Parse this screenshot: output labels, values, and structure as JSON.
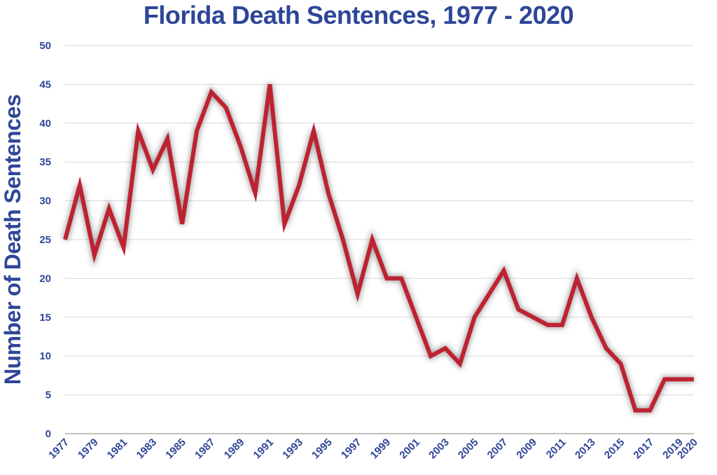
{
  "colors": {
    "text": "#2E4698",
    "line": "#BE2231",
    "grid": "#D8D8D8",
    "axis": "#9A9A9A",
    "shadow": "#5A5A5A"
  },
  "chart_data": {
    "type": "line",
    "title": "Florida Death Sentences, 1977 - 2020",
    "xlabel": "",
    "ylabel": "Number of Death Sentences",
    "ylim": [
      0,
      50
    ],
    "yticks": [
      0,
      5,
      10,
      15,
      20,
      25,
      30,
      35,
      40,
      45,
      50
    ],
    "xlim": [
      1977,
      2020
    ],
    "xtick_labels": [
      "1977",
      "1979",
      "1981",
      "1983",
      "1985",
      "1987",
      "1989",
      "1991",
      "1993",
      "1995",
      "1997",
      "1999",
      "2001",
      "2003",
      "2005",
      "2007",
      "2009",
      "2011",
      "2013",
      "2015",
      "2017",
      "2019",
      "2020"
    ],
    "grid": true,
    "legend": "none",
    "series": [
      {
        "x": [
          1977,
          1978,
          1979,
          1980,
          1981,
          1982,
          1983,
          1984,
          1985,
          1986,
          1987,
          1988,
          1989,
          1990,
          1991,
          1992,
          1993,
          1994,
          1995,
          1996,
          1997,
          1998,
          1999,
          2000,
          2001,
          2002,
          2003,
          2004,
          2005,
          2006,
          2007,
          2008,
          2009,
          2010,
          2011,
          2012,
          2013,
          2014,
          2015,
          2016,
          2017,
          2018,
          2019,
          2020
        ],
        "y": [
          25,
          32,
          23,
          29,
          24,
          39,
          34,
          38,
          27,
          39,
          44,
          42,
          37,
          31,
          45,
          27,
          32,
          39,
          31,
          25,
          18,
          25,
          20,
          20,
          15,
          10,
          11,
          9,
          15,
          18,
          21,
          16,
          15,
          14,
          14,
          20,
          15,
          11,
          9,
          3,
          3,
          7,
          7,
          7
        ]
      }
    ]
  }
}
